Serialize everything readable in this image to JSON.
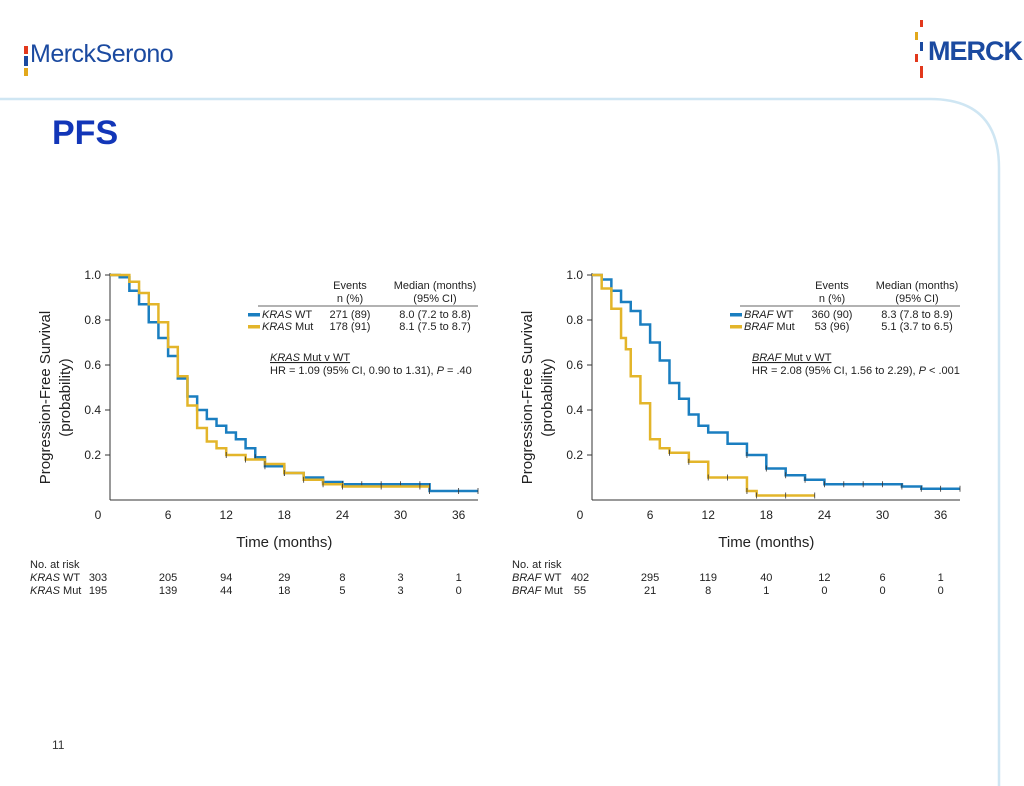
{
  "header": {
    "logo_left": "MerckSerono",
    "logo_right": "MERCK",
    "title": "PFS"
  },
  "footer": {
    "page_number": "11"
  },
  "colors": {
    "wt": "#1a7ec0",
    "mut": "#e3b52a",
    "brand_blue": "#1b4aa0",
    "title_blue": "#1236b8"
  },
  "chart_data": [
    {
      "type": "line",
      "title": "",
      "xlabel": "Time (months)",
      "ylabel": [
        "Progression-Free Survival",
        "(probability)"
      ],
      "xlim": [
        0,
        38
      ],
      "ylim": [
        0,
        1.0
      ],
      "x_ticks": [
        0,
        6,
        12,
        18,
        24,
        30,
        36
      ],
      "y_ticks": [
        0.2,
        0.4,
        0.6,
        0.8,
        1.0
      ],
      "y_tick_labels": [
        "0.2",
        "0.4",
        "0.6",
        "0.8",
        "1.0"
      ],
      "grid": false,
      "legend": {
        "position": "top-right",
        "header_events": [
          "Events",
          "n (%)"
        ],
        "header_median": [
          "Median (months)",
          "(95% CI)"
        ],
        "rows": [
          {
            "gene": "KRAS",
            "group": "WT",
            "events": "271 (89)",
            "median": "8.0 (7.2 to 8.8)",
            "color": "#1a7ec0"
          },
          {
            "gene": "KRAS",
            "group": "Mut",
            "events": "178 (91)",
            "median": "8.1 (7.5 to 8.7)",
            "color": "#e3b52a"
          }
        ]
      },
      "annotation": {
        "gene": "KRAS",
        "comparison": " Mut v WT",
        "hr_text": "HR = 1.09 (95% CI, 0.90 to 1.31), ",
        "p_label": "P",
        "p_text": " = .40"
      },
      "series": [
        {
          "name": "KRAS WT",
          "color": "#1a7ec0",
          "x": [
            0,
            1,
            2,
            3,
            4,
            5,
            6,
            7,
            8,
            9,
            10,
            11,
            12,
            13,
            14,
            15,
            16,
            18,
            20,
            22,
            24,
            26,
            28,
            30,
            32,
            33,
            36,
            38
          ],
          "y": [
            1.0,
            0.99,
            0.93,
            0.87,
            0.79,
            0.72,
            0.64,
            0.54,
            0.46,
            0.4,
            0.36,
            0.33,
            0.3,
            0.27,
            0.23,
            0.19,
            0.15,
            0.12,
            0.1,
            0.08,
            0.07,
            0.07,
            0.07,
            0.07,
            0.07,
            0.04,
            0.04,
            0.04
          ]
        },
        {
          "name": "KRAS Mut",
          "color": "#e3b52a",
          "x": [
            0,
            1,
            2,
            3,
            4,
            5,
            6,
            7,
            8,
            9,
            10,
            11,
            12,
            14,
            16,
            18,
            20,
            22,
            24,
            28,
            32,
            33
          ],
          "y": [
            1.0,
            1.0,
            0.97,
            0.92,
            0.87,
            0.79,
            0.68,
            0.55,
            0.42,
            0.32,
            0.26,
            0.23,
            0.2,
            0.18,
            0.16,
            0.12,
            0.09,
            0.07,
            0.06,
            0.06,
            0.06,
            0.06
          ]
        }
      ],
      "risk_table": {
        "header": "No. at risk",
        "times": [
          0,
          6,
          12,
          18,
          24,
          30,
          36
        ],
        "rows": [
          {
            "gene": "KRAS",
            "group": "WT",
            "values": [
              "303",
              "205",
              "94",
              "29",
              "8",
              "3",
              "1"
            ]
          },
          {
            "gene": "KRAS",
            "group": "Mut",
            "values": [
              "195",
              "139",
              "44",
              "18",
              "5",
              "3",
              "0"
            ]
          }
        ]
      }
    },
    {
      "type": "line",
      "title": "",
      "xlabel": "Time (months)",
      "ylabel": [
        "Progression-Free Survival",
        "(probability)"
      ],
      "xlim": [
        0,
        38
      ],
      "ylim": [
        0,
        1.0
      ],
      "x_ticks": [
        0,
        6,
        12,
        18,
        24,
        30,
        36
      ],
      "y_ticks": [
        0.2,
        0.4,
        0.6,
        0.8,
        1.0
      ],
      "y_tick_labels": [
        "0.2",
        "0.4",
        "0.6",
        "0.8",
        "1.0"
      ],
      "grid": false,
      "legend": {
        "position": "top-right",
        "header_events": [
          "Events",
          "n (%)"
        ],
        "header_median": [
          "Median (months)",
          "(95% CI)"
        ],
        "rows": [
          {
            "gene": "BRAF",
            "group": "WT",
            "events": "360 (90)",
            "median": "8.3 (7.8 to 8.9)",
            "color": "#1a7ec0"
          },
          {
            "gene": "BRAF",
            "group": "Mut",
            "events": "53 (96)",
            "median": "5.1 (3.7 to 6.5)",
            "color": "#e3b52a"
          }
        ]
      },
      "annotation": {
        "gene": "BRAF",
        "comparison": " Mut v WT",
        "hr_text": "HR = 2.08 (95% CI, 1.56 to 2.29), ",
        "p_label": "P",
        "p_text": " < .001"
      },
      "series": [
        {
          "name": "BRAF WT",
          "color": "#1a7ec0",
          "x": [
            0,
            1,
            2,
            3,
            4,
            5,
            6,
            7,
            8,
            9,
            10,
            11,
            12,
            14,
            16,
            18,
            20,
            22,
            24,
            26,
            28,
            30,
            32,
            34,
            36,
            38
          ],
          "y": [
            1.0,
            0.98,
            0.93,
            0.88,
            0.84,
            0.78,
            0.7,
            0.62,
            0.52,
            0.45,
            0.38,
            0.33,
            0.3,
            0.25,
            0.2,
            0.14,
            0.11,
            0.09,
            0.07,
            0.07,
            0.07,
            0.07,
            0.06,
            0.05,
            0.05,
            0.05
          ]
        },
        {
          "name": "BRAF Mut",
          "color": "#e3b52a",
          "x": [
            0,
            1,
            2,
            3,
            3.5,
            4,
            5,
            6,
            7,
            8,
            10,
            12,
            14,
            16,
            17,
            20,
            23
          ],
          "y": [
            1.0,
            0.94,
            0.85,
            0.72,
            0.67,
            0.55,
            0.43,
            0.27,
            0.23,
            0.21,
            0.17,
            0.1,
            0.1,
            0.04,
            0.02,
            0.02,
            0.02
          ]
        }
      ],
      "risk_table": {
        "header": "No. at risk",
        "times": [
          0,
          6,
          12,
          18,
          24,
          30,
          36
        ],
        "rows": [
          {
            "gene": "BRAF",
            "group": "WT",
            "values": [
              "402",
              "295",
              "119",
              "40",
              "12",
              "6",
              "1"
            ]
          },
          {
            "gene": "BRAF",
            "group": "Mut",
            "values": [
              "55",
              "21",
              "8",
              "1",
              "0",
              "0",
              "0"
            ]
          }
        ]
      }
    }
  ]
}
